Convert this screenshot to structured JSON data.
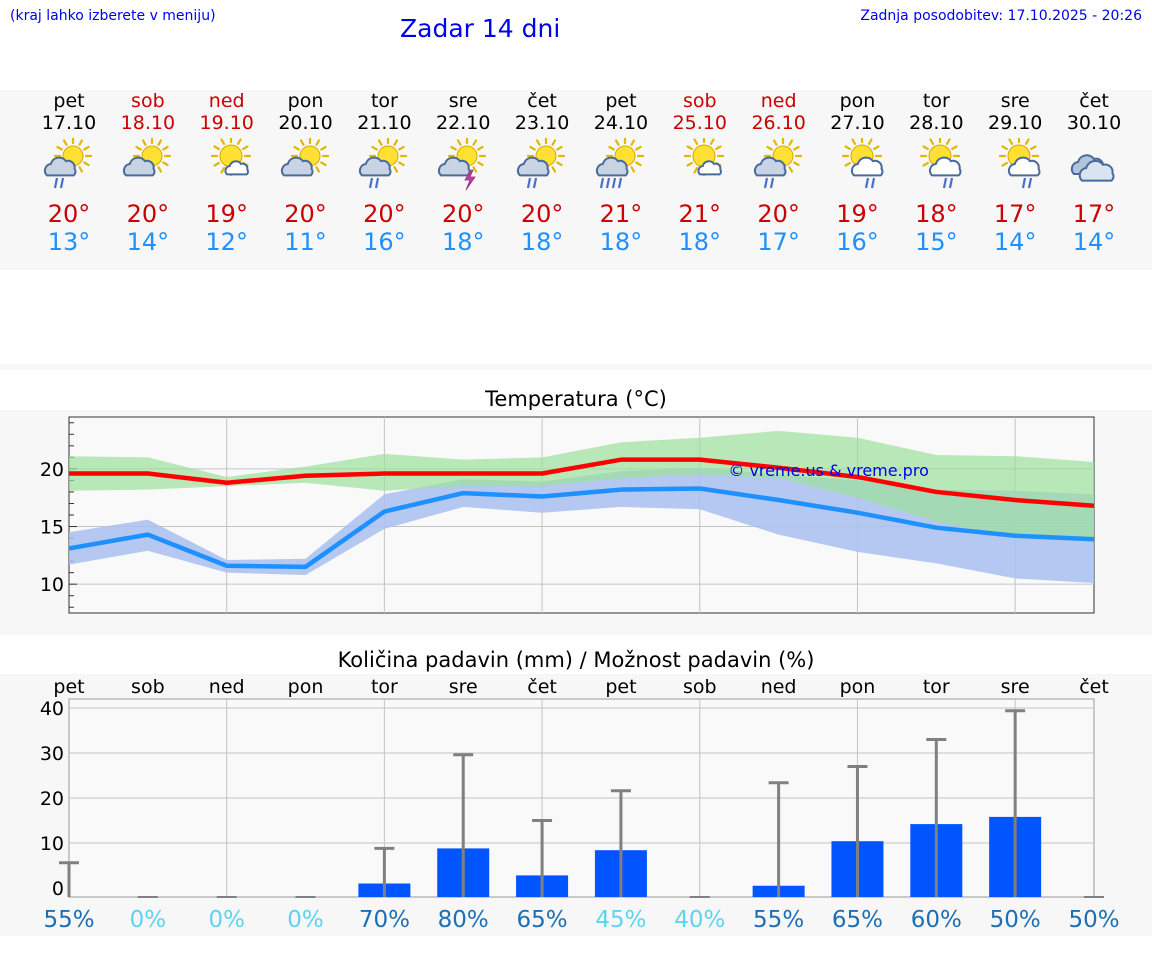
{
  "header": {
    "city_hint": "(kraj lahko izberete v meniju)",
    "title": "Zadar 14 dni",
    "updated": "Zadnja posodobitev: 17.10.2025 - 20:26"
  },
  "days": [
    {
      "name": "pet",
      "date": "17.10",
      "weekend": false,
      "icon": "sun-cloud-rain-icon",
      "tmax": "20°",
      "tmin": "13°"
    },
    {
      "name": "sob",
      "date": "18.10",
      "weekend": true,
      "icon": "sun-cloud-icon",
      "tmax": "20°",
      "tmin": "14°"
    },
    {
      "name": "ned",
      "date": "19.10",
      "weekend": true,
      "icon": "sun-small-cloud-icon",
      "tmax": "19°",
      "tmin": "12°"
    },
    {
      "name": "pon",
      "date": "20.10",
      "weekend": false,
      "icon": "sun-cloud-icon",
      "tmax": "20°",
      "tmin": "11°"
    },
    {
      "name": "tor",
      "date": "21.10",
      "weekend": false,
      "icon": "sun-cloud-rain-icon",
      "tmax": "20°",
      "tmin": "16°"
    },
    {
      "name": "sre",
      "date": "22.10",
      "weekend": false,
      "icon": "sun-cloud-lightning-icon",
      "tmax": "20°",
      "tmin": "18°"
    },
    {
      "name": "čet",
      "date": "23.10",
      "weekend": false,
      "icon": "sun-cloud-rain-icon",
      "tmax": "20°",
      "tmin": "18°"
    },
    {
      "name": "pet",
      "date": "24.10",
      "weekend": false,
      "icon": "sun-cloud-heavy-rain-icon",
      "tmax": "21°",
      "tmin": "18°"
    },
    {
      "name": "sob",
      "date": "25.10",
      "weekend": true,
      "icon": "sun-small-cloud-icon",
      "tmax": "21°",
      "tmin": "18°"
    },
    {
      "name": "ned",
      "date": "26.10",
      "weekend": true,
      "icon": "sun-cloud-rain-icon",
      "tmax": "20°",
      "tmin": "17°"
    },
    {
      "name": "pon",
      "date": "27.10",
      "weekend": false,
      "icon": "sun-cloud-rain-outline-icon",
      "tmax": "19°",
      "tmin": "16°"
    },
    {
      "name": "tor",
      "date": "28.10",
      "weekend": false,
      "icon": "sun-cloud-rain-outline-icon",
      "tmax": "18°",
      "tmin": "15°"
    },
    {
      "name": "sre",
      "date": "29.10",
      "weekend": false,
      "icon": "sun-cloud-rain-outline-icon",
      "tmax": "17°",
      "tmin": "14°"
    },
    {
      "name": "čet",
      "date": "30.10",
      "weekend": false,
      "icon": "cloudy-icon",
      "tmax": "17°",
      "tmin": "14°"
    }
  ],
  "colors": {
    "max_line": "#ff0000",
    "min_line": "#1e90ff",
    "max_band": "#9de09d",
    "min_band": "#a8c0f0",
    "bar": "#0055ff",
    "error_bar": "#808080",
    "prob_high": "#1e6eb4",
    "prob_low": "#5fd3f0"
  },
  "chart_data": [
    {
      "type": "line",
      "title": "Temperatura (°C)",
      "watermark": "© vreme.us & vreme.pro",
      "x": [
        "17.10",
        "18.10",
        "19.10",
        "20.10",
        "21.10",
        "22.10",
        "23.10",
        "24.10",
        "25.10",
        "26.10",
        "27.10",
        "28.10",
        "29.10",
        "30.10"
      ],
      "ylim": [
        7.5,
        24.5
      ],
      "yticks": [
        10,
        15,
        20
      ],
      "series": [
        {
          "role": "max",
          "values": [
            19.6,
            19.6,
            18.8,
            19.4,
            19.6,
            19.6,
            19.6,
            20.8,
            20.8,
            20.1,
            19.3,
            18.0,
            17.3,
            16.8
          ],
          "band_low": [
            18.1,
            18.2,
            18.5,
            18.8,
            18.1,
            18.5,
            18.5,
            19.2,
            19.5,
            19.2,
            17.5,
            15.4,
            14.0,
            13.7
          ],
          "band_high": [
            21.1,
            21.0,
            19.3,
            20.2,
            21.3,
            20.8,
            21.0,
            22.3,
            22.7,
            23.3,
            22.7,
            21.2,
            21.1,
            20.6
          ]
        },
        {
          "role": "min",
          "values": [
            13.1,
            14.3,
            11.6,
            11.5,
            16.3,
            17.9,
            17.6,
            18.2,
            18.3,
            17.3,
            16.2,
            14.9,
            14.2,
            13.9
          ],
          "band_low": [
            11.7,
            12.9,
            11.0,
            10.8,
            14.8,
            16.7,
            16.2,
            16.7,
            16.5,
            14.3,
            12.8,
            11.8,
            10.5,
            10.1
          ],
          "band_high": [
            14.5,
            15.6,
            12.1,
            12.2,
            17.8,
            19.1,
            18.9,
            19.8,
            20.1,
            19.5,
            19.0,
            18.2,
            18.1,
            17.8
          ]
        }
      ]
    },
    {
      "type": "bar",
      "title": "Količina padavin (mm) / Možnost padavin (%)",
      "categories": [
        "pet",
        "sob",
        "ned",
        "pon",
        "tor",
        "sre",
        "čet",
        "pet",
        "sob",
        "ned",
        "pon",
        "tor",
        "sre",
        "čet"
      ],
      "ylim": [
        -2,
        42
      ],
      "yticks": [
        0,
        10,
        20,
        30,
        40
      ],
      "amount": [
        0.0,
        0.0,
        0.0,
        0.0,
        1.0,
        8.8,
        2.8,
        8.4,
        0.0,
        0.5,
        10.4,
        14.2,
        15.8,
        0.0
      ],
      "max_amount": [
        5.6,
        0.0,
        0.0,
        0.0,
        8.8,
        29.6,
        15.0,
        21.6,
        0.0,
        23.4,
        27.0,
        33.0,
        39.4,
        0.0
      ],
      "probability": [
        "55%",
        "0%",
        "0%",
        "0%",
        "70%",
        "80%",
        "65%",
        "45%",
        "40%",
        "55%",
        "65%",
        "60%",
        "50%",
        "50%"
      ]
    }
  ]
}
